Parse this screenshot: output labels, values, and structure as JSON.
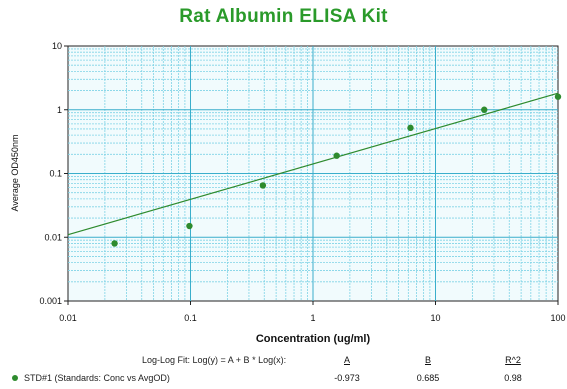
{
  "chart_data": {
    "type": "scatter",
    "title": "Rat Albumin ELISA Kit",
    "xlabel": "Concentration (ug/ml)",
    "ylabel": "Average OD450nm",
    "xscale": "log",
    "yscale": "log",
    "xlim": [
      0.01,
      100
    ],
    "ylim": [
      0.001,
      10
    ],
    "x_ticks": [
      "0.01",
      "0.1",
      "1",
      "10",
      "100"
    ],
    "y_ticks": [
      "0.001",
      "0.01",
      "0.1",
      "1",
      "10"
    ],
    "grid": true,
    "series": [
      {
        "name": "STD#1 (Standards: Conc vs AvgOD)",
        "x": [
          0.024,
          0.098,
          0.39,
          1.56,
          6.25,
          25,
          100
        ],
        "y": [
          0.008,
          0.015,
          0.065,
          0.19,
          0.52,
          1.0,
          1.6
        ]
      }
    ],
    "fit": {
      "label": "Log-Log Fit: Log(y) = A + B * Log(x):",
      "A": -0.973,
      "B": 0.685,
      "R2": 0.98
    }
  },
  "legend": {
    "fit_label": "Log-Log Fit: Log(y) = A + B * Log(x):",
    "col_a": "A",
    "col_b": "B",
    "col_r2": "R^2",
    "series_name": "STD#1 (Standards: Conc vs AvgOD)",
    "val_a": "-0.973",
    "val_b": "0.685",
    "val_r2": "0.98"
  },
  "colors": {
    "title": "#2a9a2a",
    "plot_bg": "#e8f7fb",
    "grid": "#7fd3e6",
    "line": "#2e8b2e",
    "marker": "#2e8b2e"
  }
}
